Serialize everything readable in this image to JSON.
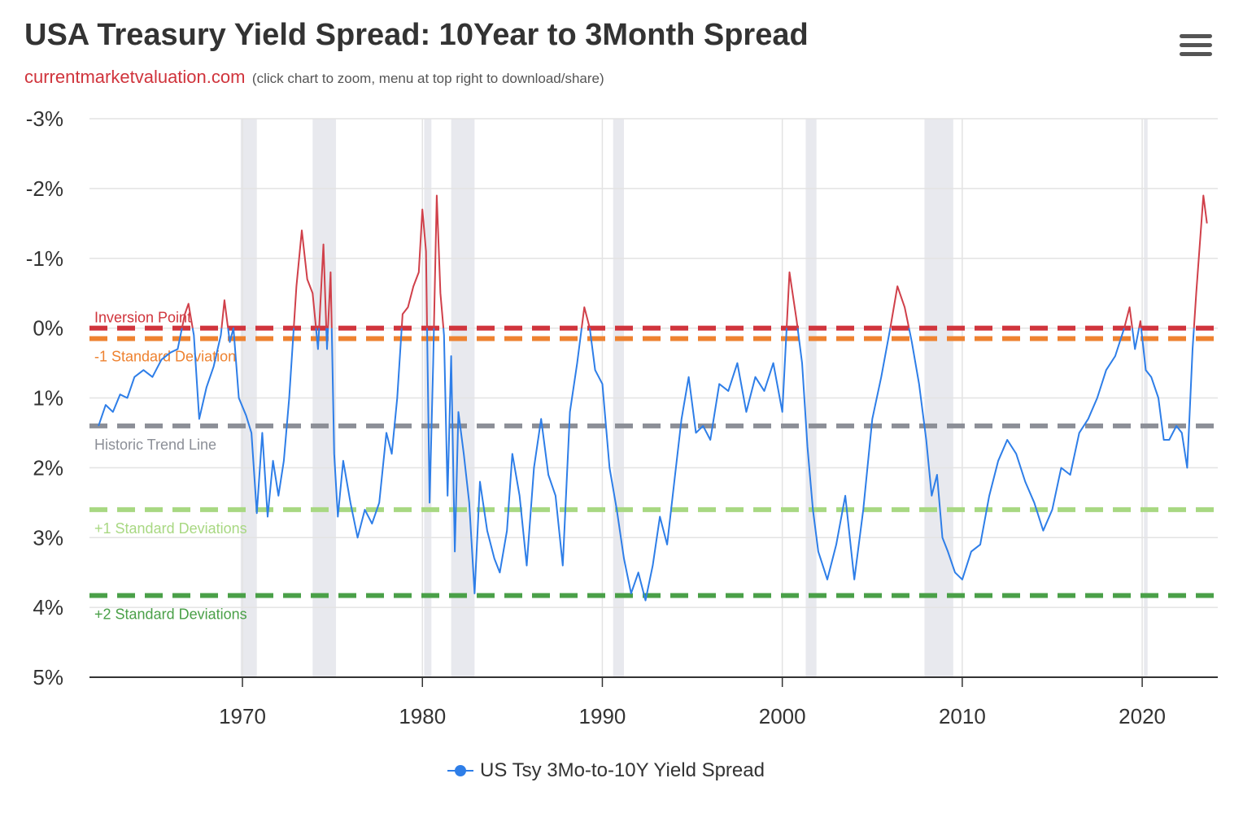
{
  "header": {
    "title": "USA Treasury Yield Spread: 10Year to 3Month Spread",
    "site": "currentmarketvaluation.com",
    "hint": "(click chart to zoom, menu at top right to download/share)",
    "menu_icon": "hamburger-menu-icon"
  },
  "legend": {
    "label": "US Tsy 3Mo-to-10Y Yield Spread"
  },
  "colors": {
    "line": "#2e7ee8",
    "inverted_line": "#d0404a",
    "inversion": "#d0343c",
    "minus1sd": "#ee8230",
    "trend": "#8c8f97",
    "plus1sd": "#a8d882",
    "plus2sd": "#4aa048",
    "recession": "#e8e9ee",
    "grid": "#e3e3e3"
  },
  "chart_data": {
    "type": "line",
    "yaxis": {
      "reversed": true,
      "min": -3,
      "max": 5,
      "ticks": [
        -3,
        -2,
        -1,
        0,
        1,
        2,
        3,
        4,
        5
      ],
      "tick_labels": [
        "-3%",
        "-2%",
        "-1%",
        "0%",
        "1%",
        "2%",
        "3%",
        "4%",
        "5%"
      ]
    },
    "xaxis": {
      "min": 1961.5,
      "max": 2024.2,
      "ticks": [
        1970,
        1980,
        1990,
        2000,
        2010,
        2020
      ],
      "tick_labels": [
        "1970",
        "1980",
        "1990",
        "2000",
        "2010",
        "2020"
      ]
    },
    "grid": true,
    "legend_position": "bottom-center",
    "reference_lines": [
      {
        "name": "inversion",
        "label": "Inversion Point",
        "value": 0.0
      },
      {
        "name": "minus1sd",
        "label": "-1 Standard Deviation",
        "value": 0.15
      },
      {
        "name": "trend",
        "label": "Historic Trend Line",
        "value": 1.4
      },
      {
        "name": "plus1sd",
        "label": "+1 Standard Deviations",
        "value": 2.6
      },
      {
        "name": "plus2sd",
        "label": "+2 Standard Deviations",
        "value": 3.83
      }
    ],
    "recessions": [
      [
        1969.9,
        1970.8
      ],
      [
        1973.9,
        1975.2
      ],
      [
        1980.1,
        1980.5
      ],
      [
        1981.6,
        1982.9
      ],
      [
        1990.6,
        1991.2
      ],
      [
        2001.3,
        2001.9
      ],
      [
        2007.9,
        2009.5
      ],
      [
        2020.1,
        2020.3
      ]
    ],
    "series": [
      {
        "name": "US Tsy 3Mo-to-10Y Yield Spread",
        "x": [
          1962.0,
          1962.4,
          1962.8,
          1963.2,
          1963.6,
          1964.0,
          1964.5,
          1965.0,
          1965.5,
          1966.0,
          1966.4,
          1966.8,
          1967.0,
          1967.3,
          1967.6,
          1968.0,
          1968.4,
          1968.8,
          1969.0,
          1969.3,
          1969.5,
          1969.8,
          1970.2,
          1970.5,
          1970.8,
          1971.1,
          1971.4,
          1971.7,
          1972.0,
          1972.3,
          1972.6,
          1973.0,
          1973.3,
          1973.6,
          1973.9,
          1974.2,
          1974.5,
          1974.7,
          1974.9,
          1975.1,
          1975.3,
          1975.6,
          1976.0,
          1976.4,
          1976.8,
          1977.2,
          1977.6,
          1978.0,
          1978.3,
          1978.6,
          1978.9,
          1979.2,
          1979.5,
          1979.8,
          1980.0,
          1980.2,
          1980.4,
          1980.6,
          1980.8,
          1981.0,
          1981.2,
          1981.4,
          1981.6,
          1981.8,
          1982.0,
          1982.3,
          1982.6,
          1982.9,
          1983.2,
          1983.6,
          1984.0,
          1984.3,
          1984.7,
          1985.0,
          1985.4,
          1985.8,
          1986.2,
          1986.6,
          1987.0,
          1987.4,
          1987.8,
          1988.2,
          1988.6,
          1989.0,
          1989.3,
          1989.6,
          1990.0,
          1990.4,
          1990.8,
          1991.2,
          1991.6,
          1992.0,
          1992.4,
          1992.8,
          1993.2,
          1993.6,
          1994.0,
          1994.4,
          1994.8,
          1995.2,
          1995.6,
          1996.0,
          1996.5,
          1997.0,
          1997.5,
          1998.0,
          1998.5,
          1999.0,
          1999.5,
          2000.0,
          2000.4,
          2000.8,
          2001.1,
          2001.4,
          2001.7,
          2002.0,
          2002.5,
          2003.0,
          2003.5,
          2004.0,
          2004.5,
          2005.0,
          2005.5,
          2006.0,
          2006.4,
          2006.8,
          2007.2,
          2007.6,
          2008.0,
          2008.3,
          2008.6,
          2008.9,
          2009.2,
          2009.6,
          2010.0,
          2010.5,
          2011.0,
          2011.5,
          2012.0,
          2012.5,
          2013.0,
          2013.5,
          2014.0,
          2014.5,
          2015.0,
          2015.5,
          2016.0,
          2016.5,
          2017.0,
          2017.5,
          2018.0,
          2018.5,
          2019.0,
          2019.3,
          2019.6,
          2019.9,
          2020.2,
          2020.5,
          2020.9,
          2021.2,
          2021.5,
          2021.9,
          2022.2,
          2022.5,
          2022.8,
          2023.0,
          2023.2,
          2023.4,
          2023.6
        ],
        "values": [
          1.4,
          1.1,
          1.2,
          0.95,
          1.0,
          0.7,
          0.6,
          0.7,
          0.45,
          0.35,
          0.3,
          -0.2,
          -0.35,
          0.1,
          1.3,
          0.85,
          0.55,
          0.1,
          -0.4,
          0.2,
          0.0,
          1.0,
          1.25,
          1.5,
          2.65,
          1.5,
          2.7,
          1.9,
          2.4,
          1.9,
          1.0,
          -0.6,
          -1.4,
          -0.7,
          -0.5,
          0.3,
          -1.2,
          0.3,
          -0.8,
          1.8,
          2.7,
          1.9,
          2.5,
          3.0,
          2.6,
          2.8,
          2.5,
          1.5,
          1.8,
          1.0,
          -0.2,
          -0.3,
          -0.6,
          -0.8,
          -1.7,
          -1.1,
          2.5,
          0.5,
          -1.9,
          -0.5,
          0.1,
          2.4,
          0.4,
          3.2,
          1.2,
          1.8,
          2.5,
          3.8,
          2.2,
          2.9,
          3.3,
          3.5,
          2.9,
          1.8,
          2.4,
          3.4,
          2.0,
          1.3,
          2.1,
          2.4,
          3.4,
          1.2,
          0.5,
          -0.3,
          0.0,
          0.6,
          0.8,
          2.0,
          2.6,
          3.3,
          3.8,
          3.5,
          3.9,
          3.4,
          2.7,
          3.1,
          2.2,
          1.3,
          0.7,
          1.5,
          1.4,
          1.6,
          0.8,
          0.9,
          0.5,
          1.2,
          0.7,
          0.9,
          0.5,
          1.2,
          -0.8,
          -0.1,
          0.5,
          1.7,
          2.6,
          3.2,
          3.6,
          3.1,
          2.4,
          3.6,
          2.6,
          1.3,
          0.7,
          0.0,
          -0.6,
          -0.3,
          0.2,
          0.8,
          1.6,
          2.4,
          2.1,
          3.0,
          3.2,
          3.5,
          3.6,
          3.2,
          3.1,
          2.4,
          1.9,
          1.6,
          1.8,
          2.2,
          2.5,
          2.9,
          2.6,
          2.0,
          2.1,
          1.5,
          1.3,
          1.0,
          0.6,
          0.4,
          0.0,
          -0.3,
          0.3,
          -0.1,
          0.6,
          0.7,
          1.0,
          1.6,
          1.6,
          1.4,
          1.5,
          2.0,
          0.3,
          -0.5,
          -1.2,
          -1.9,
          -1.5
        ]
      }
    ]
  }
}
